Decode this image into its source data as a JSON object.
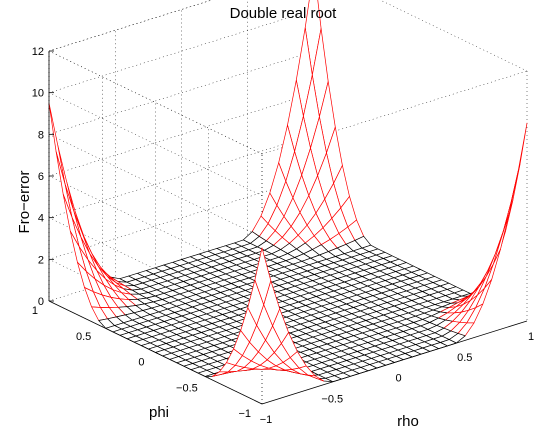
{
  "chart_data": {
    "type": "surface",
    "title": "Double real root",
    "xlabel": "rho",
    "ylabel": "phi",
    "zlabel": "Fro−error",
    "xlim": [
      -1,
      1
    ],
    "ylim": [
      -1,
      1
    ],
    "zlim": [
      0,
      12
    ],
    "xticks": [
      "−1",
      "−0.5",
      "0",
      "0.5",
      "1"
    ],
    "yticks": [
      "−1",
      "−0.5",
      "0",
      "0.5",
      "1"
    ],
    "zticks": [
      "0",
      "2",
      "4",
      "6",
      "8",
      "10",
      "12"
    ],
    "grid": true,
    "mesh_flat_color": "#000000",
    "mesh_raised_color": "#ff0000",
    "corner_peaks": [
      {
        "rho": -1,
        "phi": 1,
        "value": 9.5
      },
      {
        "rho": 1,
        "phi": 1,
        "value": 12
      },
      {
        "rho": 1,
        "phi": -1,
        "value": 9.5
      },
      {
        "rho": -1,
        "phi": -1,
        "value": 7.5
      }
    ]
  }
}
